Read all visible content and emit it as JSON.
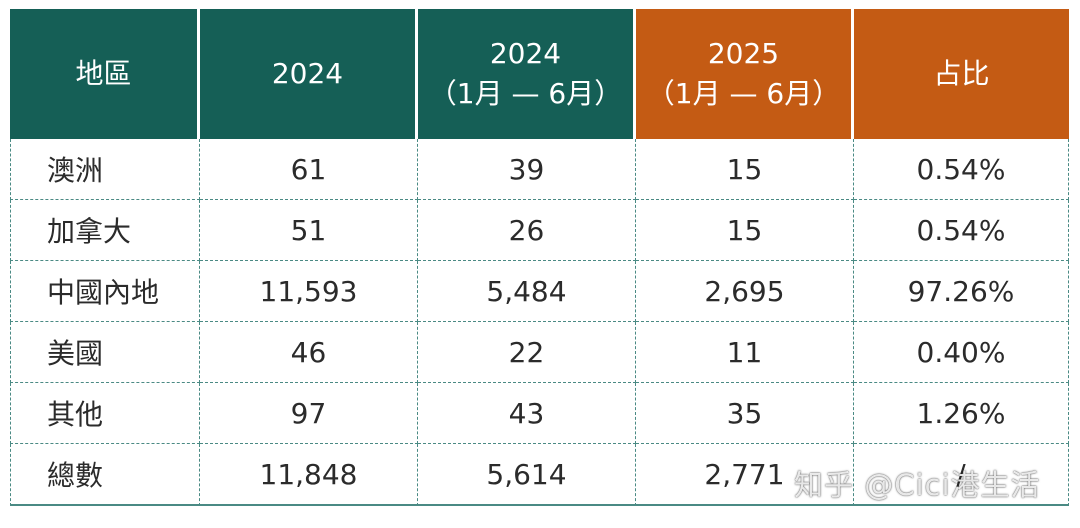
{
  "table": {
    "header": {
      "region": "地區",
      "col_2024": "2024",
      "col_2024h1_year": "2024",
      "col_2024h1_period": "（1月 — 6月）",
      "col_2025h1_year": "2025",
      "col_2025h1_period": "（1月 — 6月）",
      "share": "占比"
    },
    "header_colors": {
      "green": "#155f56",
      "orange": "#c45b14"
    },
    "rows": [
      {
        "region": "澳洲",
        "y2024": "61",
        "y2024h1": "39",
        "y2025h1": "15",
        "share": "0.54%"
      },
      {
        "region": "加拿大",
        "y2024": "51",
        "y2024h1": "26",
        "y2025h1": "15",
        "share": "0.54%"
      },
      {
        "region": "中國內地",
        "y2024": "11,593",
        "y2024h1": "5,484",
        "y2025h1": "2,695",
        "share": "97.26%"
      },
      {
        "region": "美國",
        "y2024": "46",
        "y2024h1": "22",
        "y2025h1": "11",
        "share": "0.40%"
      },
      {
        "region": "其他",
        "y2024": "97",
        "y2024h1": "43",
        "y2025h1": "35",
        "share": "1.26%"
      },
      {
        "region": "總數",
        "y2024": "11,848",
        "y2024h1": "5,614",
        "y2025h1": "2,771",
        "share": "/"
      }
    ]
  },
  "watermark": "知乎 @Cici港生活"
}
